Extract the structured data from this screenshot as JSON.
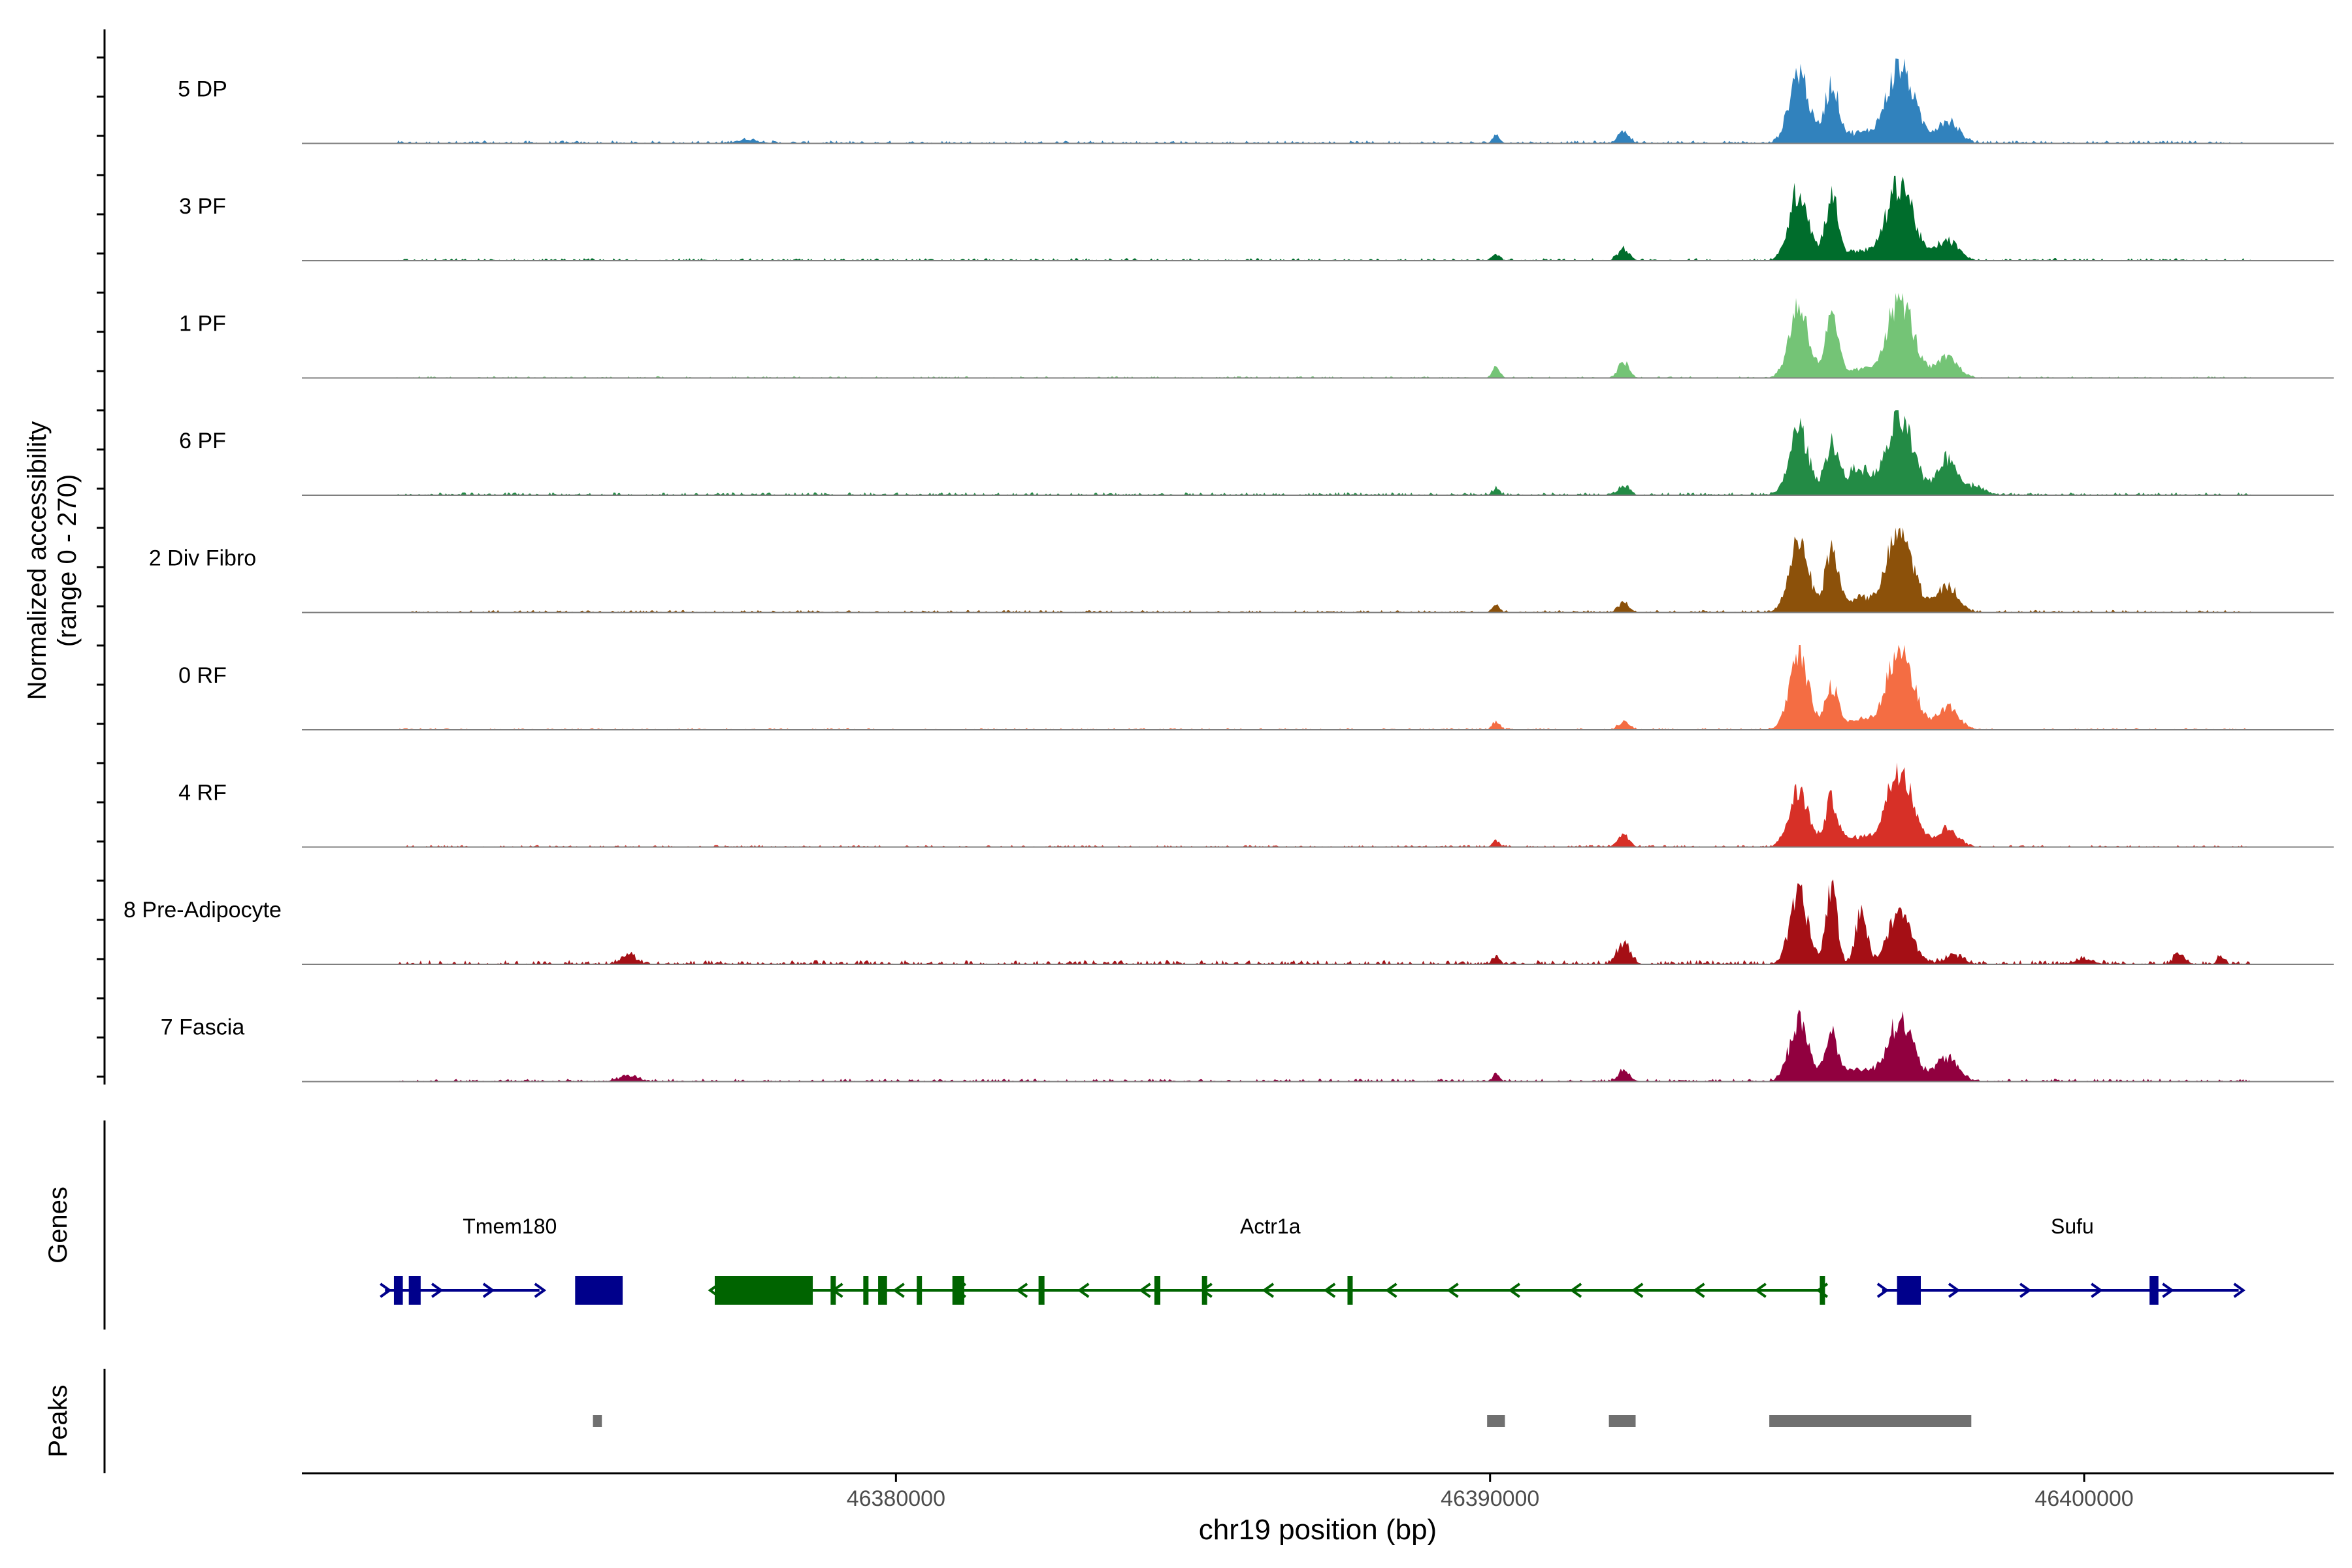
{
  "chart_data": {
    "type": "area",
    "title": "",
    "xlabel": "chr19 position (bp)",
    "ylabel": "Normalized accessibility",
    "ylabel_range": "(range 0 - 270)",
    "ylim": [
      0,
      270
    ],
    "xlim": [
      46370000,
      46404200
    ],
    "x_ticks": [
      "46380000",
      "46390000",
      "46400000"
    ],
    "x_tick_values": [
      46380000,
      46390000,
      46400000
    ],
    "track_labels": {
      "genes": "Genes",
      "peaks": "Peaks"
    },
    "series": [
      {
        "name": "5 DP",
        "color": "#3182bd",
        "noise": 0.035,
        "peaks": [
          [
            46395200,
            0.9,
            160
          ],
          [
            46395750,
            0.72,
            120
          ],
          [
            46396900,
            0.95,
            230
          ],
          [
            46397700,
            0.28,
            180
          ],
          [
            46392250,
            0.15,
            90
          ],
          [
            46390100,
            0.1,
            60
          ],
          [
            46377500,
            0.04,
            200
          ],
          [
            46396200,
            0.12,
            200
          ]
        ]
      },
      {
        "name": "3 PF",
        "color": "#006d2c",
        "noise": 0.03,
        "peaks": [
          [
            46395200,
            0.88,
            160
          ],
          [
            46395750,
            0.78,
            110
          ],
          [
            46396900,
            0.98,
            220
          ],
          [
            46397700,
            0.25,
            180
          ],
          [
            46392250,
            0.15,
            90
          ],
          [
            46390100,
            0.08,
            60
          ],
          [
            46396200,
            0.12,
            200
          ]
        ]
      },
      {
        "name": "1 PF",
        "color": "#74c476",
        "noise": 0.02,
        "peaks": [
          [
            46395200,
            0.9,
            160
          ],
          [
            46395750,
            0.72,
            110
          ],
          [
            46396900,
            0.98,
            220
          ],
          [
            46397700,
            0.25,
            180
          ],
          [
            46392250,
            0.2,
            90
          ],
          [
            46390100,
            0.13,
            60
          ],
          [
            46396200,
            0.1,
            200
          ]
        ]
      },
      {
        "name": "6 PF",
        "color": "#238b45",
        "noise": 0.035,
        "peaks": [
          [
            46395200,
            0.82,
            160
          ],
          [
            46395750,
            0.65,
            110
          ],
          [
            46396900,
            0.93,
            220
          ],
          [
            46397700,
            0.45,
            180
          ],
          [
            46392250,
            0.12,
            90
          ],
          [
            46390100,
            0.08,
            60
          ],
          [
            46396200,
            0.32,
            200
          ],
          [
            46398200,
            0.1,
            150
          ]
        ]
      },
      {
        "name": "2 Div Fibro",
        "color": "#8c510a",
        "noise": 0.03,
        "peaks": [
          [
            46395200,
            0.92,
            160
          ],
          [
            46395750,
            0.78,
            110
          ],
          [
            46396900,
            1.0,
            220
          ],
          [
            46397700,
            0.32,
            180
          ],
          [
            46392250,
            0.12,
            90
          ],
          [
            46390100,
            0.08,
            60
          ],
          [
            46396200,
            0.18,
            200
          ]
        ]
      },
      {
        "name": "0 RF",
        "color": "#f46d43",
        "noise": 0.02,
        "peaks": [
          [
            46395200,
            0.9,
            160
          ],
          [
            46395750,
            0.55,
            110
          ],
          [
            46396900,
            1.0,
            220
          ],
          [
            46397700,
            0.28,
            180
          ],
          [
            46392250,
            0.1,
            90
          ],
          [
            46390100,
            0.1,
            60
          ],
          [
            46396200,
            0.12,
            200
          ]
        ]
      },
      {
        "name": "4 RF",
        "color": "#d73027",
        "noise": 0.025,
        "peaks": [
          [
            46395200,
            0.7,
            160
          ],
          [
            46395750,
            0.58,
            110
          ],
          [
            46396900,
            1.0,
            220
          ],
          [
            46397700,
            0.22,
            180
          ],
          [
            46392250,
            0.15,
            90
          ],
          [
            46390100,
            0.08,
            60
          ],
          [
            46396200,
            0.12,
            200
          ]
        ]
      },
      {
        "name": "8 Pre-Adipocyte",
        "color": "#a50f15",
        "noise": 0.05,
        "peaks": [
          [
            46395200,
            0.85,
            150
          ],
          [
            46395750,
            1.0,
            90
          ],
          [
            46396250,
            0.7,
            90
          ],
          [
            46396900,
            0.62,
            200
          ],
          [
            46397800,
            0.12,
            150
          ],
          [
            46392250,
            0.25,
            110
          ],
          [
            46390100,
            0.1,
            60
          ],
          [
            46375500,
            0.12,
            120
          ],
          [
            46400000,
            0.06,
            150
          ],
          [
            46401600,
            0.15,
            80
          ],
          [
            46402300,
            0.1,
            60
          ]
        ]
      },
      {
        "name": "7 Fascia",
        "color": "#91003f",
        "noise": 0.035,
        "peaks": [
          [
            46395200,
            0.75,
            160
          ],
          [
            46395750,
            0.6,
            110
          ],
          [
            46396900,
            0.75,
            220
          ],
          [
            46397700,
            0.3,
            180
          ],
          [
            46392250,
            0.15,
            90
          ],
          [
            46390100,
            0.08,
            60
          ],
          [
            46396200,
            0.15,
            200
          ],
          [
            46375500,
            0.07,
            150
          ]
        ]
      }
    ],
    "genes": [
      {
        "name": "Tmem180",
        "color": "#00008b",
        "strand": "+",
        "start": 46371400,
        "end": 46374000,
        "label_pos": 46373500,
        "exons": [
          [
            46371550,
            46371700
          ],
          [
            46371800,
            46372000
          ],
          [
            46374600,
            46375400
          ]
        ]
      },
      {
        "name": "Actr1a",
        "color": "#006400",
        "strand": "-",
        "start": 46376950,
        "end": 46395600,
        "label_pos": 46386300,
        "exons": [
          [
            46376950,
            46378600
          ],
          [
            46378900,
            46378950
          ],
          [
            46379450,
            46379500
          ],
          [
            46379700,
            46379850
          ],
          [
            46380350,
            46380400
          ],
          [
            46380950,
            46381150
          ],
          [
            46382400,
            46382500
          ],
          [
            46384350,
            46384450
          ],
          [
            46385150,
            46385200
          ],
          [
            46387600,
            46387650
          ],
          [
            46395550,
            46395600
          ]
        ]
      },
      {
        "name": "Sufu",
        "color": "#00008b",
        "strand": "+",
        "start": 46396600,
        "end": 46402600,
        "label_pos": 46399800,
        "exons": [
          [
            46396850,
            46397250
          ],
          [
            46401100,
            46401250
          ]
        ]
      }
    ],
    "peaks_track": [
      [
        46374900,
        46375050
      ],
      [
        46389950,
        46390250
      ],
      [
        46392000,
        46392450
      ],
      [
        46394700,
        46398100
      ]
    ]
  }
}
